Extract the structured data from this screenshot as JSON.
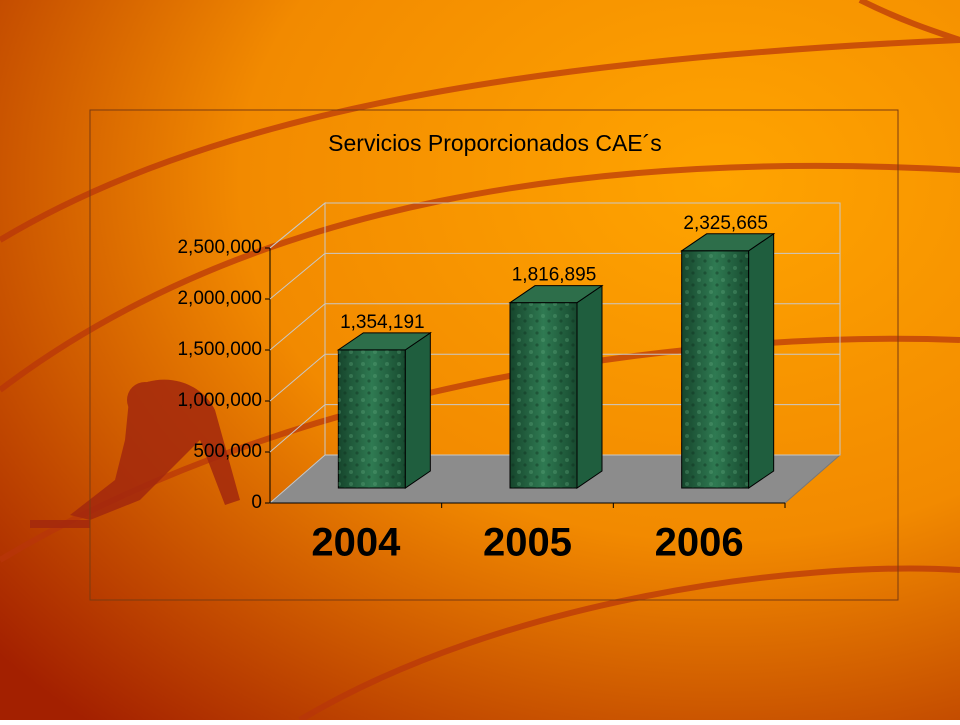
{
  "chart_data": {
    "type": "bar3d",
    "title": "Servicios Proporcionados CAE´s",
    "categories": [
      "2004",
      "2005",
      "2006"
    ],
    "values": [
      1354191,
      1816895,
      2325665
    ],
    "value_labels": [
      "1,354,191",
      "1,816,895",
      "2,325,665"
    ],
    "color": "#1f5e3e",
    "ylim": [
      0,
      2500000
    ],
    "yticks": [
      0,
      {
        "value": 500000,
        "label": "500,000"
      },
      {
        "value": 1000000,
        "label": "1,000,000"
      },
      {
        "value": 1500000,
        "label": "1,500,000"
      },
      {
        "value": 2000000,
        "label": "2,000,000"
      },
      {
        "value": 2500000,
        "label": "2,500,000"
      }
    ],
    "grid": true
  }
}
